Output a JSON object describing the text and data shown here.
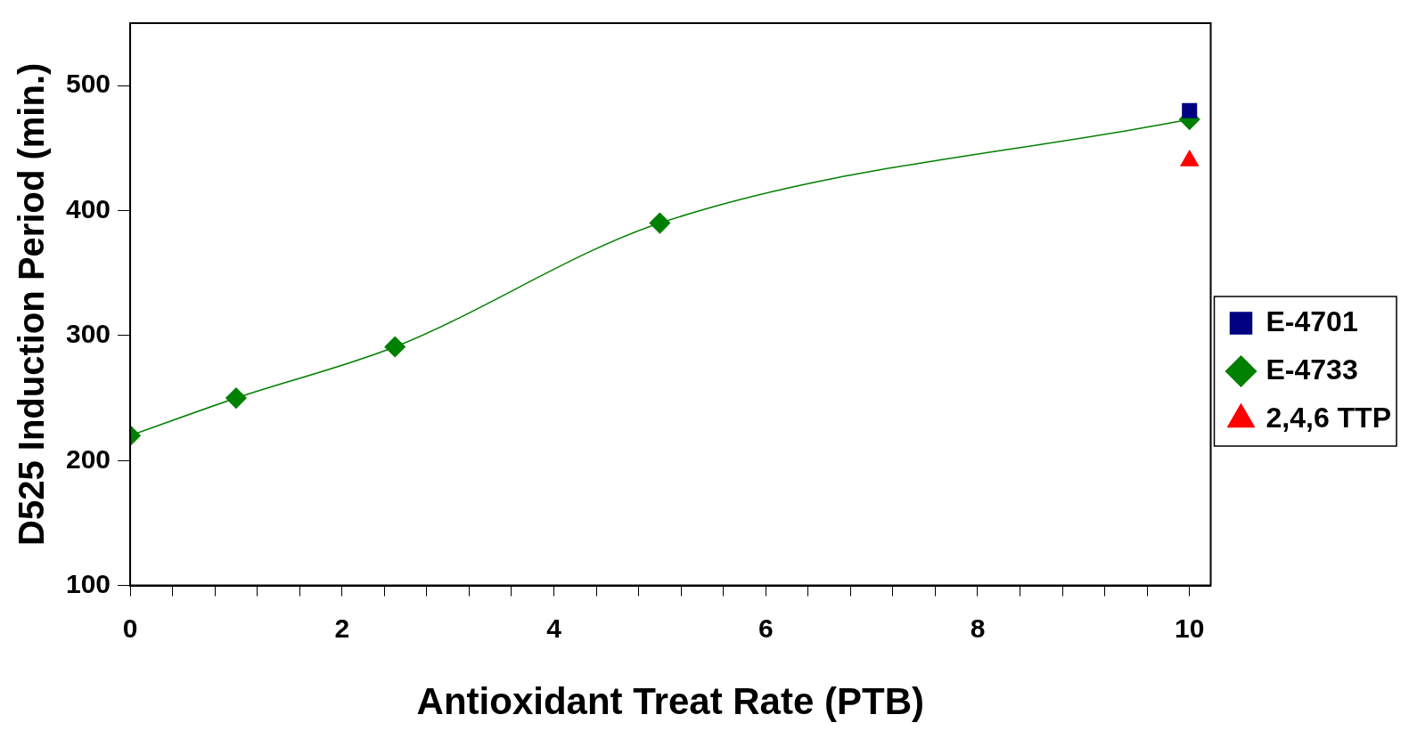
{
  "chart_data": {
    "type": "line",
    "xlabel": "Antioxidant Treat Rate (PTB)",
    "ylabel": "D525 Induction Period (min.)",
    "xlim": [
      0,
      10.2
    ],
    "ylim": [
      100,
      550
    ],
    "xticks": [
      0,
      {
        "value": 0.4,
        "label": null
      },
      {
        "value": 0.8,
        "label": null
      },
      {
        "value": 1.2,
        "label": null
      },
      {
        "value": 1.6,
        "label": null
      },
      2,
      {
        "value": 2.4,
        "label": null
      },
      {
        "value": 2.8,
        "label": null
      },
      {
        "value": 3.2,
        "label": null
      },
      {
        "value": 3.6,
        "label": null
      },
      4,
      {
        "value": 4.4,
        "label": null
      },
      {
        "value": 4.8,
        "label": null
      },
      {
        "value": 5.2,
        "label": null
      },
      {
        "value": 5.6,
        "label": null
      },
      6,
      {
        "value": 6.4,
        "label": null
      },
      {
        "value": 6.8,
        "label": null
      },
      {
        "value": 7.2,
        "label": null
      },
      {
        "value": 7.6,
        "label": null
      },
      8,
      {
        "value": 8.4,
        "label": null
      },
      {
        "value": 8.8,
        "label": null
      },
      {
        "value": 9.2,
        "label": null
      },
      {
        "value": 9.6,
        "label": null
      },
      10
    ],
    "yticks": [
      100,
      200,
      300,
      400,
      500
    ],
    "grid": false,
    "legend": "right",
    "series": [
      {
        "name": "E-4701",
        "color": "#000080",
        "marker": "square",
        "x": [
          10
        ],
        "values": [
          480
        ]
      },
      {
        "name": "E-4733",
        "color": "#008000",
        "marker": "diamond",
        "x": [
          0,
          1,
          2.5,
          5,
          10
        ],
        "values": [
          220,
          250,
          291,
          390,
          473
        ]
      },
      {
        "name": "2,4,6 TTP",
        "color": "#ff0000",
        "marker": "triangle",
        "x": [
          10
        ],
        "values": [
          440
        ]
      }
    ]
  }
}
